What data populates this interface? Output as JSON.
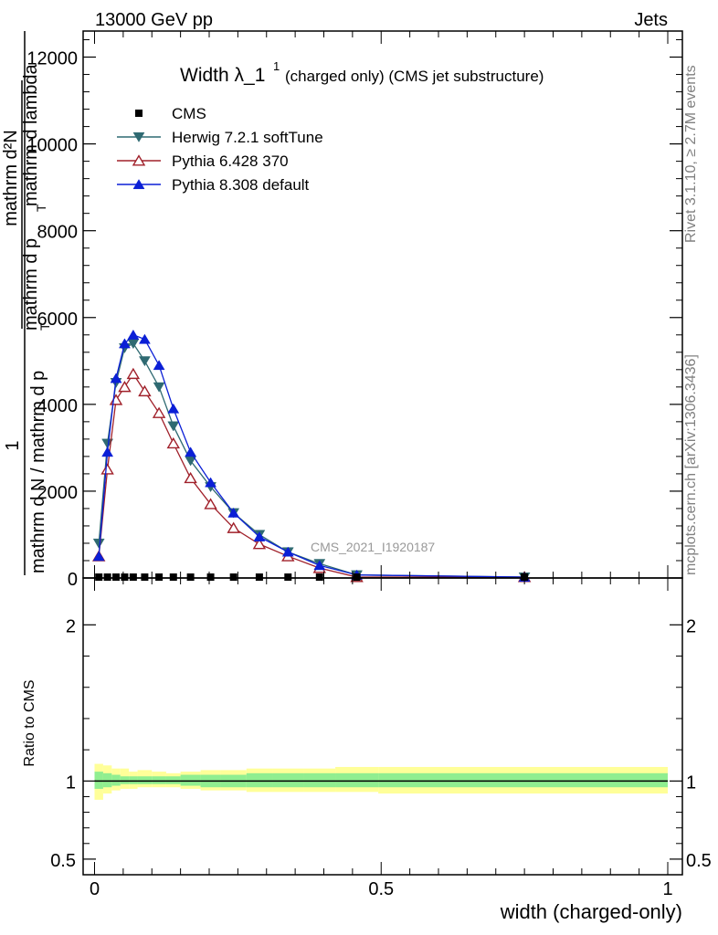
{
  "header": {
    "left": "13000 GeV pp",
    "right": "Jets"
  },
  "side_labels": {
    "rivet": "Rivet 3.1.10, ≥ 2.7M events",
    "mcplots": "mcplots.cern.ch [arXiv:1306.3436]"
  },
  "chart_data": {
    "type": "line",
    "title_main": "Width λ_1",
    "title_sup": "1",
    "title_sub": "(charged only) (CMS jet substructure)",
    "watermark": "CMS_2021_I1920187",
    "xlabel": "width (charged-only)",
    "ylabel_top": {
      "numerator": "1",
      "denominator": "mathrm d N / mathrm d p",
      "subscript": "T"
    },
    "ylabel_bottom": "Ratio to CMS",
    "ylabel_nested": {
      "numerator": "mathrm d²N",
      "denominator": "mathrm d p",
      "subscript": "T",
      "tail": " mathrm d lambda"
    },
    "xlim": [
      0,
      1
    ],
    "ylim_main": [
      0,
      12600
    ],
    "ylim_ratio": [
      0.4,
      2.3
    ],
    "x_ticks": [
      "0",
      "0.5",
      "1"
    ],
    "y_ticks_main": [
      "0",
      "2000",
      "4000",
      "6000",
      "8000",
      "10000",
      "12000"
    ],
    "y_ticks_ratio": [
      "0.5",
      "1",
      "2"
    ],
    "series": [
      {
        "name": "CMS",
        "color": "#000000",
        "marker": "square",
        "x": [
          0.0075,
          0.0225,
          0.0375,
          0.0525,
          0.0675,
          0.0875,
          0.1125,
          0.1375,
          0.1675,
          0.2025,
          0.2425,
          0.2875,
          0.3375,
          0.3925,
          0.4575,
          0.75
        ],
        "y": [
          20,
          20,
          20,
          20,
          20,
          20,
          20,
          20,
          20,
          20,
          20,
          20,
          20,
          20,
          20,
          20
        ]
      },
      {
        "name": "Herwig 7.2.1 softTune",
        "color": "#2f6a72",
        "marker": "triangle-down",
        "x": [
          0.0075,
          0.0225,
          0.0375,
          0.0525,
          0.0675,
          0.0875,
          0.1125,
          0.1375,
          0.1675,
          0.2025,
          0.2425,
          0.2875,
          0.3375,
          0.3925,
          0.4575,
          0.75
        ],
        "y": [
          800,
          3100,
          4500,
          5300,
          5400,
          5000,
          4400,
          3500,
          2700,
          2100,
          1500,
          1000,
          600,
          330,
          70,
          20
        ]
      },
      {
        "name": "Pythia 6.428 370",
        "color": "#a0202a",
        "marker": "triangle-up-open",
        "x": [
          0.0075,
          0.0225,
          0.0375,
          0.0525,
          0.0675,
          0.0875,
          0.1125,
          0.1375,
          0.1675,
          0.2025,
          0.2425,
          0.2875,
          0.3375,
          0.3925,
          0.4575,
          0.75
        ],
        "y": [
          500,
          2500,
          4100,
          4400,
          4700,
          4300,
          3800,
          3100,
          2300,
          1700,
          1150,
          780,
          500,
          230,
          20,
          20
        ]
      },
      {
        "name": "Pythia 8.308 default",
        "color": "#0b1fd6",
        "marker": "triangle-up",
        "x": [
          0.0075,
          0.0225,
          0.0375,
          0.0525,
          0.0675,
          0.0875,
          0.1125,
          0.1375,
          0.1675,
          0.2025,
          0.2425,
          0.2875,
          0.3375,
          0.3925,
          0.4575,
          0.75
        ],
        "y": [
          500,
          2900,
          4600,
          5400,
          5600,
          5500,
          4900,
          3900,
          2900,
          2200,
          1500,
          950,
          600,
          290,
          70,
          20
        ]
      }
    ],
    "ratio_bands": {
      "edges": [
        0.0,
        0.015,
        0.03,
        0.045,
        0.06,
        0.075,
        0.1,
        0.125,
        0.15,
        0.185,
        0.22,
        0.265,
        0.31,
        0.365,
        0.42,
        0.495,
        1.0
      ],
      "inner_low": [
        0.95,
        0.96,
        0.97,
        0.98,
        0.98,
        0.98,
        0.98,
        0.98,
        0.97,
        0.96,
        0.96,
        0.96,
        0.96,
        0.96,
        0.96,
        0.96
      ],
      "inner_high": [
        1.06,
        1.05,
        1.04,
        1.03,
        1.03,
        1.03,
        1.03,
        1.03,
        1.04,
        1.04,
        1.04,
        1.05,
        1.05,
        1.05,
        1.05,
        1.05
      ],
      "outer_low": [
        0.88,
        0.92,
        0.94,
        0.95,
        0.95,
        0.96,
        0.96,
        0.96,
        0.95,
        0.94,
        0.94,
        0.93,
        0.93,
        0.93,
        0.93,
        0.92
      ],
      "outer_high": [
        1.11,
        1.1,
        1.08,
        1.08,
        1.06,
        1.07,
        1.06,
        1.05,
        1.06,
        1.07,
        1.07,
        1.08,
        1.08,
        1.08,
        1.09,
        1.09
      ],
      "inner_color": "#90ee90",
      "outer_color": "#ffff99"
    }
  }
}
